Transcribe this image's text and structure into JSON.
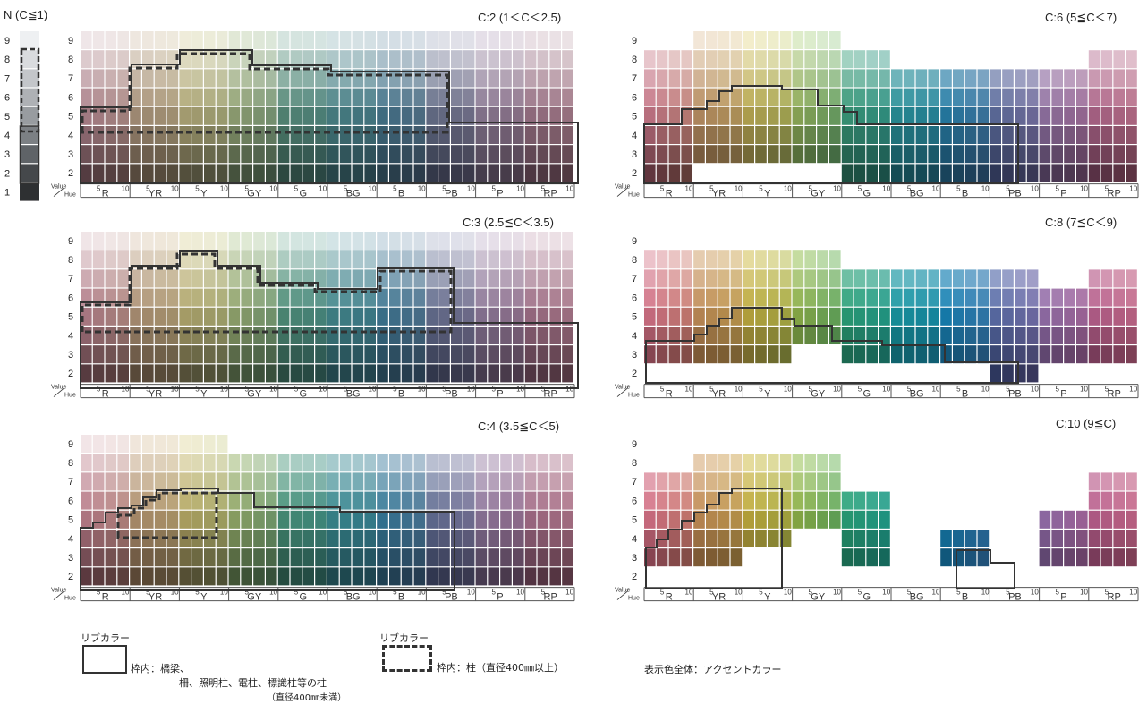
{
  "hues": [
    {
      "name": "R",
      "center": [
        211,
        113,
        133
      ],
      "light": [
        247,
        226,
        230
      ],
      "dark": [
        105,
        50,
        60
      ]
    },
    {
      "name": "YR",
      "center": [
        192,
        140,
        85
      ],
      "light": [
        245,
        229,
        210
      ],
      "dark": [
        100,
        70,
        40
      ]
    },
    {
      "name": "Y",
      "center": [
        190,
        170,
        60
      ],
      "light": [
        245,
        238,
        195
      ],
      "dark": [
        90,
        80,
        35
      ]
    },
    {
      "name": "GY",
      "center": [
        140,
        175,
        70
      ],
      "light": [
        220,
        238,
        195
      ],
      "dark": [
        60,
        90,
        40
      ]
    },
    {
      "name": "G",
      "center": [
        40,
        160,
        120
      ],
      "light": [
        200,
        235,
        222
      ],
      "dark": [
        20,
        85,
        65
      ]
    },
    {
      "name": "BG",
      "center": [
        20,
        150,
        160
      ],
      "light": [
        200,
        232,
        236
      ],
      "dark": [
        10,
        80,
        90
      ]
    },
    {
      "name": "B",
      "center": [
        20,
        130,
        180
      ],
      "light": [
        200,
        225,
        240
      ],
      "dark": [
        15,
        70,
        100
      ]
    },
    {
      "name": "PB",
      "center": [
        90,
        110,
        170
      ],
      "light": [
        218,
        224,
        242
      ],
      "dark": [
        45,
        55,
        95
      ]
    },
    {
      "name": "P",
      "center": [
        150,
        110,
        170
      ],
      "light": [
        232,
        220,
        240
      ],
      "dark": [
        75,
        55,
        90
      ]
    },
    {
      "name": "RP",
      "center": [
        185,
        95,
        140
      ],
      "light": [
        242,
        218,
        230
      ],
      "dark": [
        95,
        45,
        70
      ]
    }
  ],
  "neutral": {
    "title": "N (C≦1)",
    "values": [
      "9",
      "8",
      "7",
      "6",
      "5",
      "4",
      "3",
      "2",
      "1"
    ]
  },
  "common": {
    "value_label": "Value",
    "hue_label": "Hue",
    "tick_5": "5",
    "tick_10": "10",
    "value_labels": [
      "9",
      "8",
      "7",
      "6",
      "5",
      "4",
      "3",
      "2"
    ]
  },
  "panels": [
    {
      "id": "c2",
      "title": "C:2 (1＜C＜2.5)",
      "chroma": 2,
      "rows_available": [
        [
          2,
          9
        ],
        [
          2,
          9
        ],
        [
          2,
          9
        ],
        [
          2,
          9
        ],
        [
          2,
          9
        ],
        [
          2,
          9
        ],
        [
          2,
          9
        ],
        [
          2,
          9
        ],
        [
          2,
          9
        ],
        [
          2,
          9
        ]
      ]
    },
    {
      "id": "c3",
      "title": "C:3 (2.5≦C＜3.5)",
      "chroma": 3,
      "rows_available": [
        [
          2,
          9
        ],
        [
          2,
          9
        ],
        [
          2,
          9
        ],
        [
          2,
          9
        ],
        [
          2,
          9
        ],
        [
          2,
          9
        ],
        [
          2,
          9
        ],
        [
          2,
          9
        ],
        [
          2,
          9
        ],
        [
          2,
          9
        ]
      ]
    },
    {
      "id": "c4",
      "title": "C:4 (3.5≦C＜5)",
      "chroma": 4,
      "rows_available": [
        [
          2,
          9
        ],
        [
          2,
          9
        ],
        [
          2,
          9
        ],
        [
          2,
          8
        ],
        [
          2,
          8
        ],
        [
          2,
          8
        ],
        [
          2,
          8
        ],
        [
          2,
          8
        ],
        [
          2,
          8
        ],
        [
          2,
          8
        ]
      ]
    },
    {
      "id": "c6",
      "title": "C:6 (5≦C＜7)",
      "chroma": 6,
      "rows_available": [
        [
          2,
          8
        ],
        [
          3,
          9
        ],
        [
          3,
          9
        ],
        [
          3,
          9
        ],
        [
          2,
          8
        ],
        [
          2,
          7
        ],
        [
          2,
          7
        ],
        [
          2,
          7
        ],
        [
          2,
          7
        ],
        [
          2,
          8
        ]
      ]
    },
    {
      "id": "c8",
      "title": "C:8 (7≦C＜9)",
      "chroma": 8,
      "rows_available": [
        [
          3,
          8
        ],
        [
          3,
          8
        ],
        [
          3,
          8
        ],
        [
          4,
          8
        ],
        [
          3,
          7
        ],
        [
          3,
          7
        ],
        [
          3,
          7
        ],
        [
          2,
          7
        ],
        [
          3,
          6
        ],
        [
          3,
          7
        ]
      ]
    },
    {
      "id": "c10",
      "title": "C:10 (9≦C)",
      "chroma": 10,
      "rows_available": [
        [
          3,
          7
        ],
        [
          3,
          8
        ],
        [
          4,
          8
        ],
        [
          5,
          8
        ],
        [
          3,
          6
        ],
        [
          0,
          0
        ],
        [
          3,
          4
        ],
        [
          0,
          0
        ],
        [
          3,
          5
        ],
        [
          3,
          7
        ]
      ]
    }
  ],
  "legend": {
    "solid_title": "リブカラー",
    "solid_line1": "枠内：橋梁、",
    "solid_line2": "柵、照明柱、電柱、標識柱等の柱",
    "solid_line3": "（直径400㎜未満）",
    "dash_title": "リブカラー",
    "dash_line1": "枠内：柱（直径400㎜以上）",
    "accent": "表示色全体：アクセントカラー"
  }
}
